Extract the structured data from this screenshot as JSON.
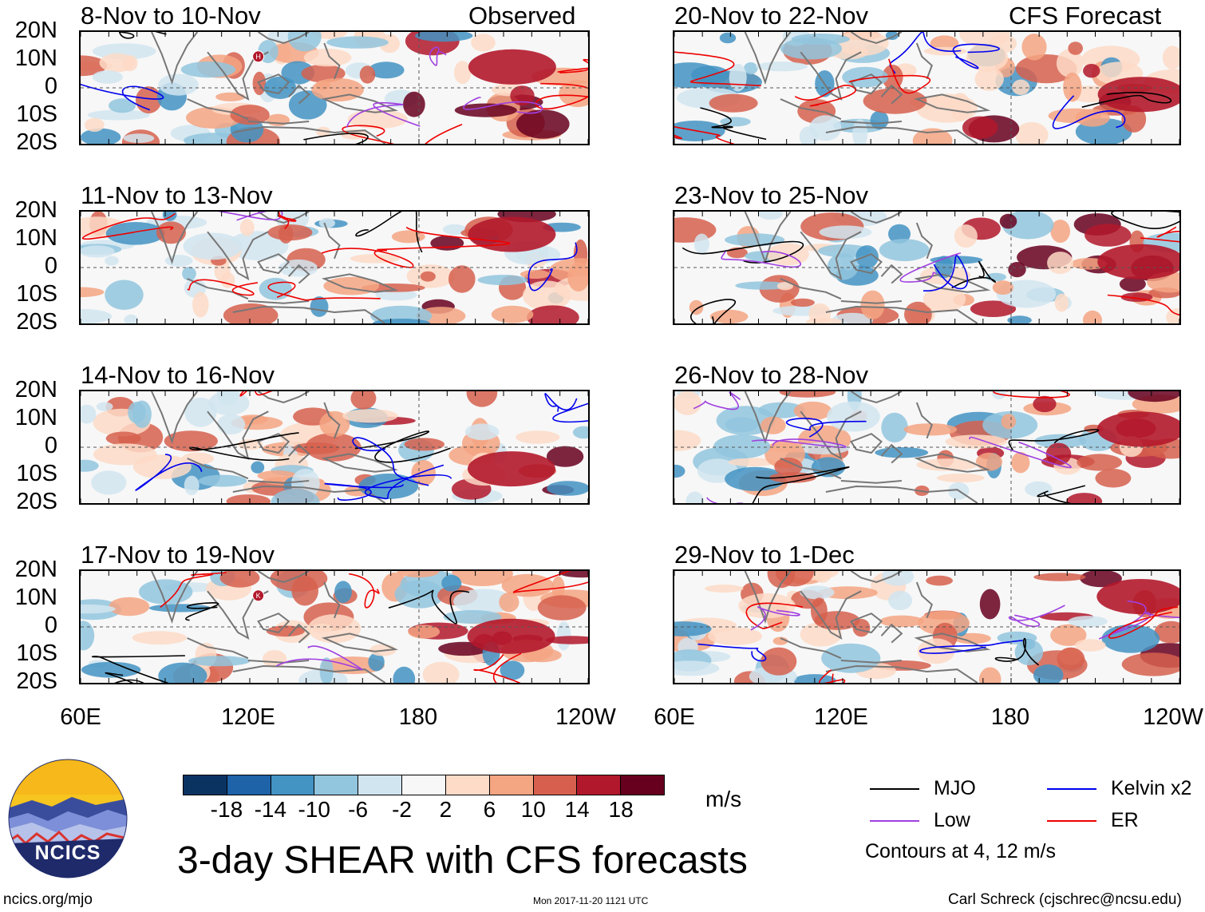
{
  "panels": [
    {
      "title": "8-Nov to 10-Nov",
      "label": "Observed"
    },
    {
      "title": "20-Nov to 22-Nov",
      "label": "CFS Forecast"
    },
    {
      "title": "11-Nov to 13-Nov",
      "label": ""
    },
    {
      "title": "23-Nov to 25-Nov",
      "label": ""
    },
    {
      "title": "14-Nov to 16-Nov",
      "label": ""
    },
    {
      "title": "26-Nov to 28-Nov",
      "label": ""
    },
    {
      "title": "17-Nov to 19-Nov",
      "label": ""
    },
    {
      "title": "29-Nov to 1-Dec",
      "label": ""
    }
  ],
  "lat_labels": [
    "20N",
    "10N",
    "0",
    "10S",
    "20S"
  ],
  "lon_labels": [
    "60E",
    "120E",
    "180",
    "120W"
  ],
  "colorbar": {
    "colors": [
      "#0b3362",
      "#1e62a8",
      "#4393c3",
      "#92c5de",
      "#d1e5f0",
      "#f7f7f7",
      "#fddbc7",
      "#f4a582",
      "#d6604d",
      "#b2182b",
      "#67001f"
    ],
    "labels": [
      "-18",
      "-14",
      "-10",
      "-6",
      "-2",
      "2",
      "6",
      "10",
      "14",
      "18"
    ],
    "units": "m/s"
  },
  "legend": {
    "items": [
      {
        "label": "MJO",
        "color": "#000000"
      },
      {
        "label": "Kelvin x2",
        "color": "#0000ee"
      },
      {
        "label": "Low",
        "color": "#a040e0"
      },
      {
        "label": "ER",
        "color": "#ee0000"
      }
    ],
    "note": "Contours at 4, 12 m/s"
  },
  "main_title": "3-day SHEAR with CFS forecasts",
  "logo_text": "NCICS",
  "footer": {
    "left": "ncics.org/mjo",
    "center": "Mon 2017-11-20 1121 UTC",
    "right": "Carl Schreck (cjschrec@ncsu.edu)"
  },
  "storm_markers": [
    {
      "panel": 0,
      "letter": "H"
    },
    {
      "panel": 6,
      "letter": "K"
    }
  ]
}
